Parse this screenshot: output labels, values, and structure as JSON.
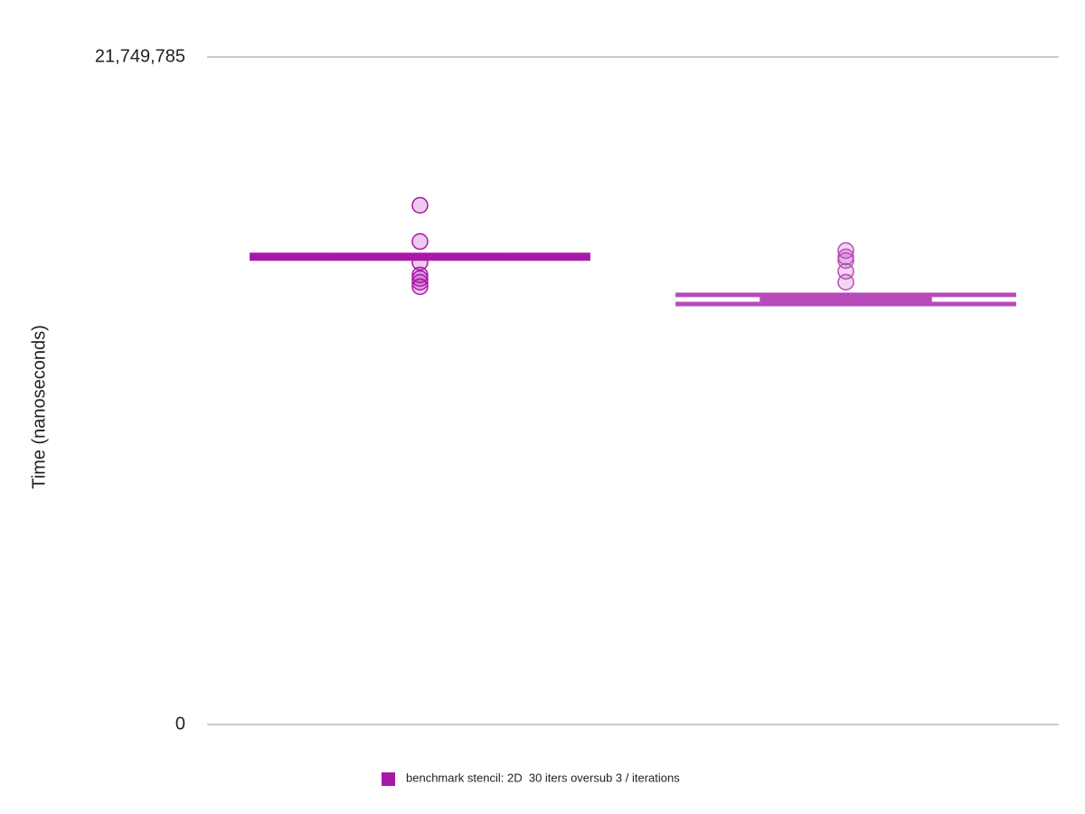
{
  "chart_data": {
    "type": "box",
    "y_label": "Time (nanoseconds)",
    "ylim": [
      0,
      21749785
    ],
    "yticks": [
      0,
      {
        "value": 21749785,
        "label": "21,749,785"
      }
    ],
    "grid": true,
    "categories": [
      null,
      null
    ],
    "series": [
      {
        "name": "benchmark stencil: 2D  30 iters oversub 3 / iterations",
        "color": "#a817a8",
        "box_colors": [
          "#a817a8",
          "#b84bbb"
        ],
        "boxes": [
          {
            "min": 15180000,
            "q1": 15200000,
            "median": 15240000,
            "q3": 15290000,
            "max": 15300000,
            "outliers": [
              16916000,
              15737000,
              15060000,
              14647000,
              14529000,
              14411000,
              14264000
            ]
          },
          {
            "min": 13700000,
            "q1": 13720000,
            "median": 13850000,
            "q3": 13990000,
            "max": 14000000,
            "outliers": [
              15443000,
              15236000,
              15119000,
              14765000,
              14411000
            ]
          }
        ]
      }
    ],
    "legend": "bottom"
  }
}
